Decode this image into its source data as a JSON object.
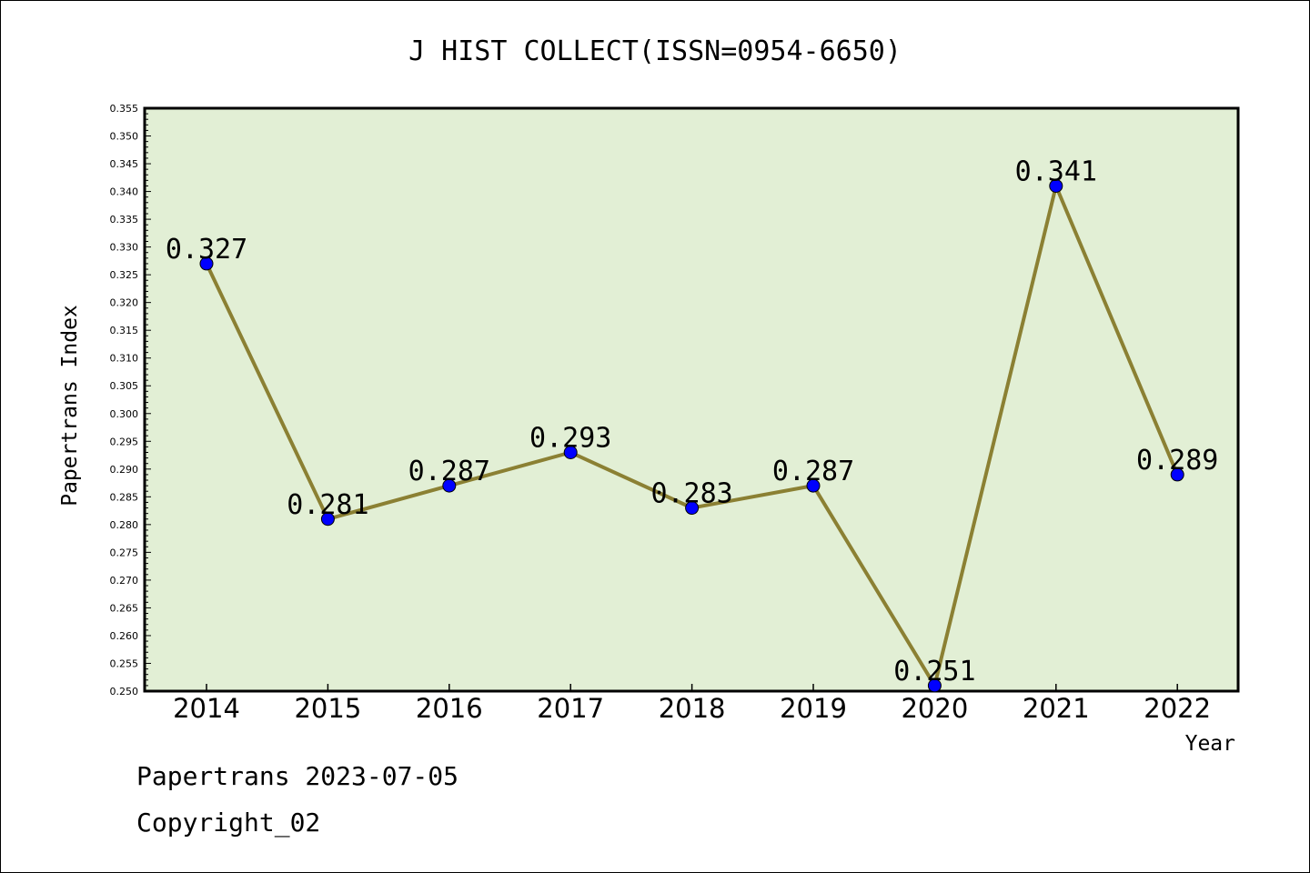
{
  "chart_data": {
    "type": "line",
    "title": "J HIST COLLECT(ISSN=0954-6650)",
    "xlabel": "Year",
    "ylabel": "Papertrans Index",
    "categories": [
      "2014",
      "2015",
      "2016",
      "2017",
      "2018",
      "2019",
      "2020",
      "2021",
      "2022"
    ],
    "series": [
      {
        "values": [
          0.327,
          0.281,
          0.287,
          0.293,
          0.283,
          0.287,
          0.251,
          0.341,
          0.289
        ]
      }
    ],
    "data_labels": [
      "0.327",
      "0.281",
      "0.287",
      "0.293",
      "0.283",
      "0.287",
      "0.251",
      "0.341",
      "0.289"
    ],
    "ylim": [
      0.25,
      0.355
    ],
    "ytick_labels": [
      "0.250",
      "0.255",
      "0.260",
      "0.265",
      "0.270",
      "0.275",
      "0.280",
      "0.285",
      "0.290",
      "0.295",
      "0.300",
      "0.305",
      "0.310",
      "0.315",
      "0.320",
      "0.325",
      "0.330",
      "0.335",
      "0.340",
      "0.345",
      "0.350",
      "0.355"
    ],
    "grid": false,
    "colors": {
      "plot_background": "#e2efd5",
      "line": "#8b8033",
      "marker": "#0000ff"
    }
  },
  "footer": {
    "date_line": "Papertrans 2023-07-05",
    "copyright": "Copyright_02"
  }
}
